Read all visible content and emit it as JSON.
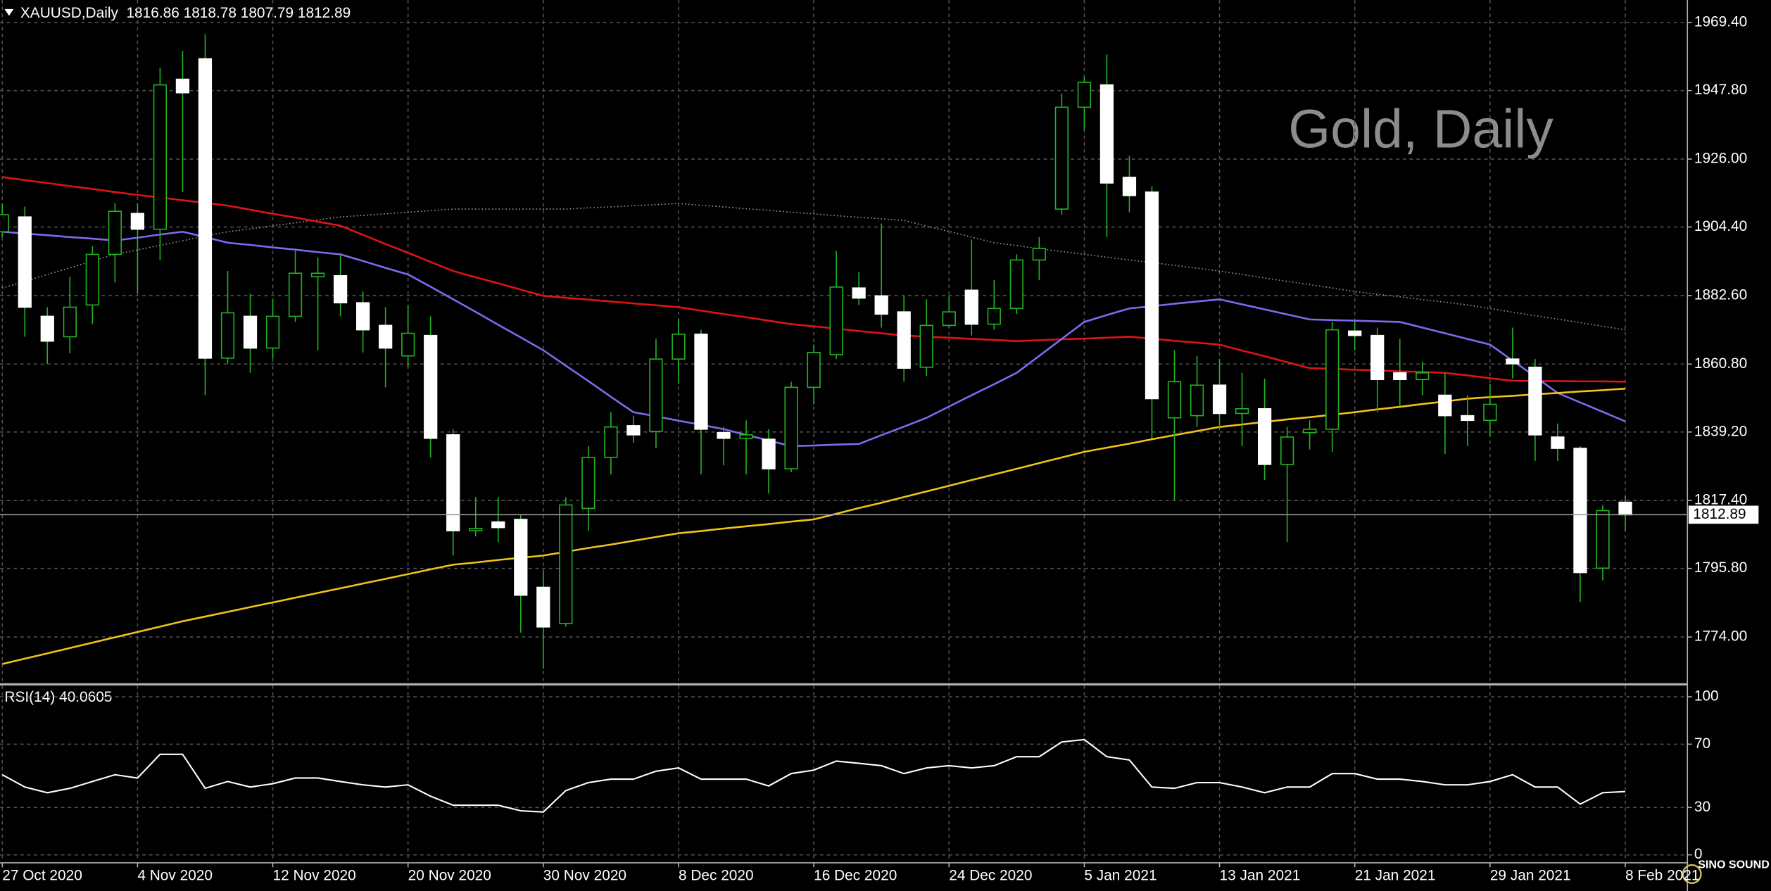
{
  "chart_data": [
    {
      "type": "candlestick",
      "title": "XAUUSD,Daily  1816.86 1818.78 1807.79 1812.89",
      "watermark": "Gold, Daily",
      "categories": [
        "27 Oct 2020",
        null,
        null,
        null,
        null,
        null,
        "4 Nov 2020",
        null,
        null,
        null,
        null,
        null,
        "12 Nov 2020",
        null,
        null,
        null,
        null,
        null,
        "20 Nov 2020",
        null,
        null,
        null,
        null,
        null,
        "30 Nov 2020",
        null,
        null,
        null,
        null,
        null,
        "8 Dec 2020",
        null,
        null,
        null,
        null,
        null,
        "16 Dec 2020",
        null,
        null,
        null,
        null,
        null,
        "24 Dec 2020",
        null,
        null,
        null,
        null,
        null,
        "5 Jan 2021",
        null,
        null,
        null,
        null,
        null,
        "13 Jan 2021",
        null,
        null,
        null,
        null,
        null,
        "21 Jan 2021",
        null,
        null,
        null,
        null,
        null,
        "29 Jan 2021",
        null,
        null,
        null,
        null,
        null,
        "8 Feb 2021"
      ],
      "open": [
        1902.9,
        1907.6,
        1876.0,
        1869.5,
        1879.6,
        1895.7,
        1908.7,
        1903.7,
        1951.4,
        1957.9,
        1862.7,
        1876.0,
        1865.9,
        1876.0,
        1888.6,
        1888.9,
        1880.3,
        1873.1,
        1863.4,
        1869.9,
        1838.3,
        1807.8,
        1810.6,
        1811.4,
        1789.8,
        1778.3,
        1814.9,
        1831.1,
        1841.2,
        1839.4,
        1862.4,
        1870.3,
        1839.0,
        1837.2,
        1836.9,
        1827.5,
        1853.4,
        1863.8,
        1885.0,
        1882.5,
        1877.4,
        1859.8,
        1873.1,
        1884.3,
        1873.5,
        1878.5,
        1893.9,
        1910.1,
        1942.5,
        1949.6,
        1920.2,
        1915.5,
        1843.7,
        1844.4,
        1854.1,
        1845.1,
        1846.6,
        1828.9,
        1839.0,
        1840.1,
        1871.3,
        1869.9,
        1858.0,
        1855.9,
        1850.9,
        1844.4,
        1842.9,
        1862.4,
        1859.8,
        1837.6,
        1834.0,
        1795.9,
        1816.86
      ],
      "high": [
        1911.9,
        1910.9,
        1878.9,
        1888.6,
        1898.3,
        1911.9,
        1911.9,
        1955.0,
        1960.4,
        1965.8,
        1890.4,
        1883.2,
        1881.4,
        1896.8,
        1894.7,
        1895.7,
        1883.9,
        1878.9,
        1879.6,
        1876.0,
        1840.1,
        1818.5,
        1818.5,
        1813.1,
        1795.2,
        1818.5,
        1834.7,
        1845.5,
        1844.4,
        1868.8,
        1875.3,
        1871.7,
        1840.8,
        1842.9,
        1840.1,
        1855.2,
        1867.0,
        1896.8,
        1890.0,
        1905.5,
        1882.5,
        1881.4,
        1882.5,
        1900.4,
        1887.5,
        1895.7,
        1901.2,
        1946.8,
        1952.2,
        1959.3,
        1927.0,
        1917.3,
        1865.2,
        1863.4,
        1862.4,
        1858.0,
        1856.2,
        1840.8,
        1842.9,
        1874.2,
        1874.2,
        1872.4,
        1868.8,
        1861.6,
        1858.0,
        1850.9,
        1854.5,
        1872.4,
        1862.4,
        1841.9,
        1834.7,
        1816.0,
        1818.78
      ],
      "low": [
        1901.2,
        1869.5,
        1860.9,
        1864.2,
        1873.5,
        1886.8,
        1883.2,
        1893.9,
        1915.5,
        1850.9,
        1860.9,
        1858.0,
        1862.4,
        1874.2,
        1865.2,
        1876.0,
        1864.5,
        1853.4,
        1859.8,
        1831.1,
        1799.9,
        1806.0,
        1804.2,
        1775.4,
        1763.9,
        1777.2,
        1807.8,
        1825.7,
        1835.8,
        1834.0,
        1854.5,
        1825.7,
        1828.6,
        1825.7,
        1819.6,
        1826.4,
        1848.0,
        1862.4,
        1879.6,
        1872.4,
        1855.2,
        1857.0,
        1872.4,
        1869.9,
        1871.7,
        1876.7,
        1887.5,
        1908.3,
        1935.3,
        1901.2,
        1909.1,
        1837.2,
        1817.5,
        1840.8,
        1840.1,
        1834.7,
        1823.9,
        1804.2,
        1833.6,
        1832.9,
        1865.2,
        1845.5,
        1847.3,
        1850.9,
        1832.2,
        1834.7,
        1837.9,
        1856.2,
        1830.0,
        1830.0,
        1785.1,
        1792.0,
        1807.79
      ],
      "close": [
        1908.3,
        1878.9,
        1868.1,
        1878.9,
        1895.7,
        1909.4,
        1903.7,
        1949.6,
        1947.1,
        1862.7,
        1877.1,
        1865.9,
        1876.0,
        1889.7,
        1889.7,
        1880.3,
        1871.7,
        1865.9,
        1870.6,
        1837.2,
        1807.8,
        1808.5,
        1808.8,
        1787.3,
        1777.2,
        1816.0,
        1831.1,
        1840.8,
        1838.3,
        1862.4,
        1870.3,
        1840.1,
        1837.2,
        1838.3,
        1827.5,
        1853.4,
        1864.5,
        1885.3,
        1881.8,
        1876.7,
        1859.5,
        1873.1,
        1877.4,
        1873.5,
        1878.5,
        1893.9,
        1897.6,
        1942.5,
        1950.4,
        1918.4,
        1914.4,
        1849.8,
        1855.2,
        1854.1,
        1845.1,
        1846.6,
        1828.9,
        1837.6,
        1840.1,
        1871.7,
        1869.9,
        1855.9,
        1855.9,
        1858.0,
        1844.4,
        1842.9,
        1848.0,
        1860.9,
        1838.3,
        1834.0,
        1794.5,
        1814.2,
        1812.89
      ],
      "up_color": "#000000",
      "down_color": "#ffffff",
      "wick_color": "#22b422",
      "lines": [
        {
          "color": "#9a9a9a",
          "style": "dotted",
          "values": [
            1885.0,
            1887.1,
            1889.3,
            1891.4,
            1893.6,
            1895.7,
            1897.1,
            1898.6,
            1900.0,
            1901.5,
            1902.9,
            1903.8,
            1904.8,
            1905.7,
            1906.7,
            1907.6,
            1908.1,
            1908.6,
            1909.1,
            1909.6,
            1910.1,
            1910.1,
            1910.1,
            1910.1,
            1910.1,
            1910.1,
            1910.5,
            1910.8,
            1911.2,
            1911.5,
            1911.9,
            1911.3,
            1910.8,
            1910.2,
            1909.7,
            1909.1,
            1908.6,
            1908.0,
            1907.5,
            1907.0,
            1906.5,
            1904.7,
            1903.0,
            1901.2,
            1899.4,
            1898.5,
            1897.5,
            1896.6,
            1895.7,
            1894.8,
            1893.9,
            1893.1,
            1892.2,
            1891.3,
            1890.4,
            1889.3,
            1888.2,
            1887.1,
            1886.1,
            1885.0,
            1883.9,
            1883.0,
            1882.2,
            1881.3,
            1880.5,
            1879.6,
            1878.5,
            1877.3,
            1876.2,
            1875.1,
            1874.0,
            1872.8,
            1871.7
          ]
        },
        {
          "color": "#e01414",
          "style": "solid",
          "values": [
            1920.3,
            1919.3,
            1918.4,
            1917.4,
            1916.5,
            1915.5,
            1914.6,
            1913.8,
            1912.9,
            1912.1,
            1911.2,
            1909.9,
            1908.6,
            1907.4,
            1906.1,
            1904.8,
            1901.9,
            1899.0,
            1896.2,
            1893.3,
            1890.4,
            1888.4,
            1886.5,
            1884.5,
            1882.5,
            1881.9,
            1881.3,
            1880.7,
            1880.1,
            1879.5,
            1878.9,
            1877.8,
            1876.7,
            1875.7,
            1874.6,
            1873.5,
            1872.8,
            1872.1,
            1871.3,
            1870.6,
            1869.9,
            1869.5,
            1869.2,
            1868.8,
            1868.5,
            1868.1,
            1868.4,
            1868.7,
            1868.9,
            1869.2,
            1869.5,
            1868.9,
            1868.2,
            1867.6,
            1867.0,
            1865.1,
            1863.3,
            1861.4,
            1859.5,
            1859.3,
            1859.0,
            1858.8,
            1858.5,
            1858.3,
            1858.0,
            1857.2,
            1856.3,
            1855.5,
            1855.4,
            1855.4,
            1855.3,
            1855.3,
            1855.2
          ]
        },
        {
          "color": "#7b6cf0",
          "style": "solid",
          "values": [
            1902.9,
            1902.3,
            1901.8,
            1901.2,
            1900.7,
            1900.1,
            1901.0,
            1902.0,
            1902.9,
            1901.2,
            1899.4,
            1898.7,
            1897.9,
            1897.2,
            1896.4,
            1895.7,
            1893.6,
            1891.4,
            1889.3,
            1885.4,
            1881.4,
            1877.4,
            1873.3,
            1869.3,
            1865.2,
            1860.3,
            1855.4,
            1850.4,
            1845.5,
            1844.2,
            1842.8,
            1841.5,
            1840.1,
            1838.3,
            1836.5,
            1834.7,
            1834.9,
            1835.2,
            1835.4,
            1838.2,
            1840.9,
            1843.7,
            1847.3,
            1850.9,
            1854.4,
            1858.0,
            1863.4,
            1868.8,
            1874.2,
            1876.4,
            1878.5,
            1879.2,
            1880.0,
            1880.7,
            1881.4,
            1879.8,
            1878.2,
            1876.6,
            1875.0,
            1874.8,
            1874.6,
            1874.4,
            1874.2,
            1872.4,
            1870.6,
            1868.8,
            1867.0,
            1861.9,
            1856.8,
            1851.6,
            1848.6,
            1845.6,
            1842.6
          ]
        },
        {
          "color": "#f2c418",
          "style": "solid",
          "values": [
            1765.4,
            1767.1,
            1768.8,
            1770.5,
            1772.2,
            1773.9,
            1775.6,
            1777.3,
            1779.0,
            1780.5,
            1782.0,
            1783.5,
            1785.0,
            1786.5,
            1788.0,
            1789.5,
            1791.0,
            1792.5,
            1794.0,
            1795.5,
            1797.0,
            1797.7,
            1798.5,
            1799.2,
            1799.9,
            1801.1,
            1802.3,
            1803.4,
            1804.6,
            1805.8,
            1807.0,
            1807.7,
            1808.5,
            1809.2,
            1809.9,
            1810.7,
            1811.4,
            1813.2,
            1815.0,
            1816.7,
            1818.5,
            1820.3,
            1822.1,
            1823.9,
            1825.7,
            1827.5,
            1829.3,
            1831.1,
            1832.9,
            1834.2,
            1835.5,
            1836.9,
            1838.2,
            1839.5,
            1840.8,
            1841.6,
            1842.4,
            1843.2,
            1843.9,
            1844.7,
            1845.5,
            1846.4,
            1847.2,
            1848.1,
            1848.9,
            1849.8,
            1850.3,
            1850.7,
            1851.2,
            1851.6,
            1852.1,
            1852.5,
            1853.0
          ]
        }
      ],
      "ylim": [
        1759.3,
        1976.6
      ],
      "yticks": [
        {
          "value": 1969.4,
          "label": "1969.40"
        },
        {
          "value": 1947.8,
          "label": "1947.80"
        },
        {
          "value": 1926.0,
          "label": "1926.00"
        },
        {
          "value": 1904.4,
          "label": "1904.40"
        },
        {
          "value": 1882.6,
          "label": "1882.60"
        },
        {
          "value": 1860.8,
          "label": "1860.80"
        },
        {
          "value": 1839.2,
          "label": "1839.20"
        },
        {
          "value": 1817.4,
          "label": "1817.40"
        },
        {
          "value": 1795.8,
          "label": "1795.80"
        },
        {
          "value": 1774.0,
          "label": "1774.00"
        }
      ],
      "grid": true,
      "last_price_line": true
    },
    {
      "type": "line",
      "title": "RSI(14) 40.0605",
      "series": [
        {
          "color": "#ffffff",
          "values": [
            50.7,
            42.9,
            39.3,
            42.1,
            46.4,
            50.7,
            48.6,
            63.6,
            63.6,
            42.1,
            46.4,
            42.9,
            45.0,
            48.6,
            48.6,
            46.4,
            44.3,
            42.9,
            44.3,
            37.1,
            31.4,
            31.4,
            31.4,
            27.9,
            27.1,
            40.7,
            45.7,
            47.9,
            47.9,
            52.9,
            55.0,
            47.9,
            47.9,
            47.9,
            43.6,
            51.4,
            53.6,
            59.3,
            57.9,
            56.4,
            51.4,
            55.0,
            56.4,
            55.0,
            56.4,
            62.1,
            62.1,
            71.4,
            72.9,
            62.1,
            60.0,
            42.9,
            42.1,
            45.7,
            45.7,
            42.9,
            39.3,
            42.9,
            42.9,
            51.4,
            51.4,
            47.9,
            47.9,
            46.4,
            44.3,
            44.3,
            46.4,
            50.7,
            42.9,
            42.9,
            32.1,
            39.3,
            40.0605
          ]
        }
      ],
      "ylim": [
        0,
        100
      ],
      "yticks": [
        100,
        70,
        30,
        0
      ],
      "grid": true
    }
  ],
  "logo": "SINO SOUND"
}
